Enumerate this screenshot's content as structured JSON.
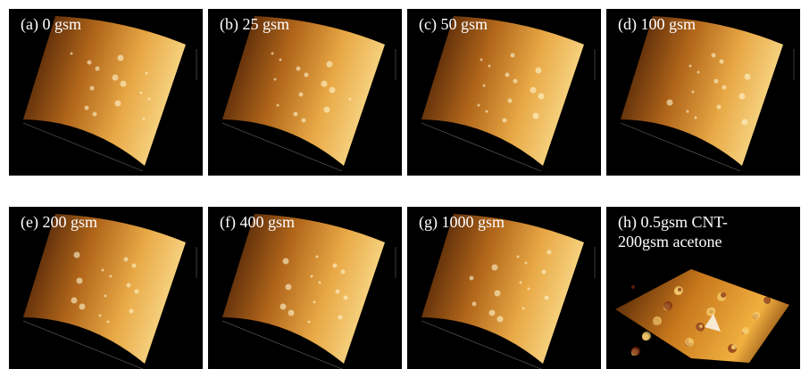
{
  "panels": [
    {
      "label": "(a) 0 gsm"
    },
    {
      "label": "(b) 25 gsm"
    },
    {
      "label": "(c) 50 gsm"
    },
    {
      "label": "(d) 100 gsm"
    },
    {
      "label": "(e) 200 gsm"
    },
    {
      "label": "(f) 400 gsm"
    },
    {
      "label": "(g) 1000 gsm"
    },
    {
      "label": "(h) 0.5gsm CNT-200gsm acetone"
    }
  ]
}
